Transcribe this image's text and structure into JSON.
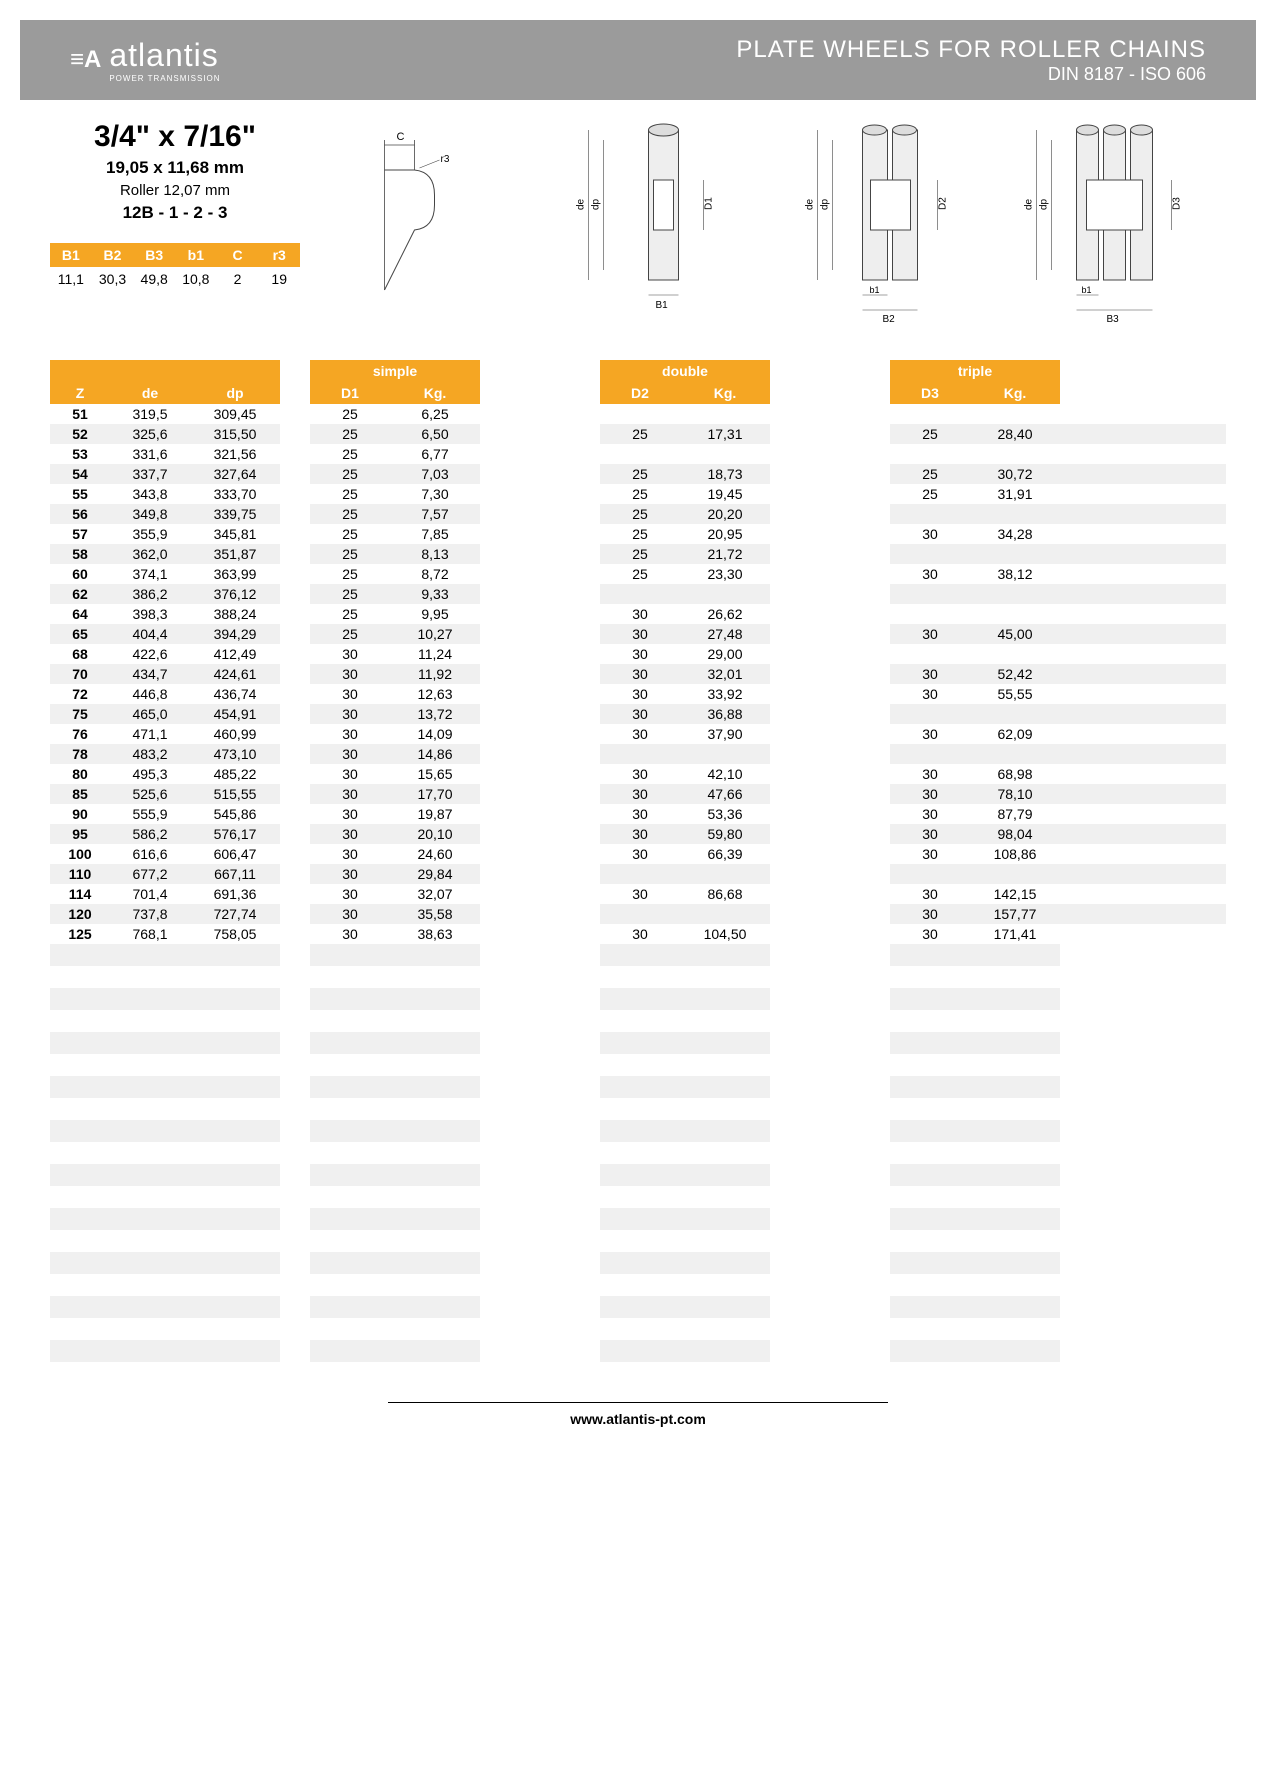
{
  "header": {
    "logo_text": "atlantis",
    "logo_sub": "POWER TRANSMISSION",
    "title1": "PLATE WHEELS FOR ROLLER CHAINS",
    "title2": "DIN 8187 - ISO 606"
  },
  "spec": {
    "main": "3/4\" x 7/16\"",
    "sub1": "19,05 x 11,68 mm",
    "sub2": "Roller 12,07 mm",
    "sub3": "12B - 1 - 2 - 3"
  },
  "small_table": {
    "headers": [
      "B1",
      "B2",
      "B3",
      "b1",
      "C",
      "r3"
    ],
    "values": [
      "11,1",
      "30,3",
      "49,8",
      "10,8",
      "2",
      "19"
    ]
  },
  "columns": {
    "z": "Z",
    "de": "de",
    "dp": "dp",
    "simple": "simple",
    "double": "double",
    "triple": "triple",
    "d1": "D1",
    "d2": "D2",
    "d3": "D3",
    "kg": "Kg."
  },
  "rows": [
    {
      "z": "51",
      "de": "319,5",
      "dp": "309,45",
      "d1": "25",
      "kg1": "6,25",
      "d2": "",
      "kg2": "",
      "d3": "",
      "kg3": ""
    },
    {
      "z": "52",
      "de": "325,6",
      "dp": "315,50",
      "d1": "25",
      "kg1": "6,50",
      "d2": "25",
      "kg2": "17,31",
      "d3": "25",
      "kg3": "28,40"
    },
    {
      "z": "53",
      "de": "331,6",
      "dp": "321,56",
      "d1": "25",
      "kg1": "6,77",
      "d2": "",
      "kg2": "",
      "d3": "",
      "kg3": ""
    },
    {
      "z": "54",
      "de": "337,7",
      "dp": "327,64",
      "d1": "25",
      "kg1": "7,03",
      "d2": "25",
      "kg2": "18,73",
      "d3": "25",
      "kg3": "30,72"
    },
    {
      "z": "55",
      "de": "343,8",
      "dp": "333,70",
      "d1": "25",
      "kg1": "7,30",
      "d2": "25",
      "kg2": "19,45",
      "d3": "25",
      "kg3": "31,91"
    },
    {
      "z": "56",
      "de": "349,8",
      "dp": "339,75",
      "d1": "25",
      "kg1": "7,57",
      "d2": "25",
      "kg2": "20,20",
      "d3": "",
      "kg3": ""
    },
    {
      "z": "57",
      "de": "355,9",
      "dp": "345,81",
      "d1": "25",
      "kg1": "7,85",
      "d2": "25",
      "kg2": "20,95",
      "d3": "30",
      "kg3": "34,28"
    },
    {
      "z": "58",
      "de": "362,0",
      "dp": "351,87",
      "d1": "25",
      "kg1": "8,13",
      "d2": "25",
      "kg2": "21,72",
      "d3": "",
      "kg3": ""
    },
    {
      "z": "60",
      "de": "374,1",
      "dp": "363,99",
      "d1": "25",
      "kg1": "8,72",
      "d2": "25",
      "kg2": "23,30",
      "d3": "30",
      "kg3": "38,12"
    },
    {
      "z": "62",
      "de": "386,2",
      "dp": "376,12",
      "d1": "25",
      "kg1": "9,33",
      "d2": "",
      "kg2": "",
      "d3": "",
      "kg3": ""
    },
    {
      "z": "64",
      "de": "398,3",
      "dp": "388,24",
      "d1": "25",
      "kg1": "9,95",
      "d2": "30",
      "kg2": "26,62",
      "d3": "",
      "kg3": ""
    },
    {
      "z": "65",
      "de": "404,4",
      "dp": "394,29",
      "d1": "25",
      "kg1": "10,27",
      "d2": "30",
      "kg2": "27,48",
      "d3": "30",
      "kg3": "45,00"
    },
    {
      "z": "68",
      "de": "422,6",
      "dp": "412,49",
      "d1": "30",
      "kg1": "11,24",
      "d2": "30",
      "kg2": "29,00",
      "d3": "",
      "kg3": ""
    },
    {
      "z": "70",
      "de": "434,7",
      "dp": "424,61",
      "d1": "30",
      "kg1": "11,92",
      "d2": "30",
      "kg2": "32,01",
      "d3": "30",
      "kg3": "52,42"
    },
    {
      "z": "72",
      "de": "446,8",
      "dp": "436,74",
      "d1": "30",
      "kg1": "12,63",
      "d2": "30",
      "kg2": "33,92",
      "d3": "30",
      "kg3": "55,55"
    },
    {
      "z": "75",
      "de": "465,0",
      "dp": "454,91",
      "d1": "30",
      "kg1": "13,72",
      "d2": "30",
      "kg2": "36,88",
      "d3": "",
      "kg3": ""
    },
    {
      "z": "76",
      "de": "471,1",
      "dp": "460,99",
      "d1": "30",
      "kg1": "14,09",
      "d2": "30",
      "kg2": "37,90",
      "d3": "30",
      "kg3": "62,09"
    },
    {
      "z": "78",
      "de": "483,2",
      "dp": "473,10",
      "d1": "30",
      "kg1": "14,86",
      "d2": "",
      "kg2": "",
      "d3": "",
      "kg3": ""
    },
    {
      "z": "80",
      "de": "495,3",
      "dp": "485,22",
      "d1": "30",
      "kg1": "15,65",
      "d2": "30",
      "kg2": "42,10",
      "d3": "30",
      "kg3": "68,98"
    },
    {
      "z": "85",
      "de": "525,6",
      "dp": "515,55",
      "d1": "30",
      "kg1": "17,70",
      "d2": "30",
      "kg2": "47,66",
      "d3": "30",
      "kg3": "78,10"
    },
    {
      "z": "90",
      "de": "555,9",
      "dp": "545,86",
      "d1": "30",
      "kg1": "19,87",
      "d2": "30",
      "kg2": "53,36",
      "d3": "30",
      "kg3": "87,79"
    },
    {
      "z": "95",
      "de": "586,2",
      "dp": "576,17",
      "d1": "30",
      "kg1": "20,10",
      "d2": "30",
      "kg2": "59,80",
      "d3": "30",
      "kg3": "98,04"
    },
    {
      "z": "100",
      "de": "616,6",
      "dp": "606,47",
      "d1": "30",
      "kg1": "24,60",
      "d2": "30",
      "kg2": "66,39",
      "d3": "30",
      "kg3": "108,86"
    },
    {
      "z": "110",
      "de": "677,2",
      "dp": "667,11",
      "d1": "30",
      "kg1": "29,84",
      "d2": "",
      "kg2": "",
      "d3": "",
      "kg3": ""
    },
    {
      "z": "114",
      "de": "701,4",
      "dp": "691,36",
      "d1": "30",
      "kg1": "32,07",
      "d2": "30",
      "kg2": "86,68",
      "d3": "30",
      "kg3": "142,15"
    },
    {
      "z": "120",
      "de": "737,8",
      "dp": "727,74",
      "d1": "30",
      "kg1": "35,58",
      "d2": "",
      "kg2": "",
      "d3": "30",
      "kg3": "157,77"
    },
    {
      "z": "125",
      "de": "768,1",
      "dp": "758,05",
      "d1": "30",
      "kg1": "38,63",
      "d2": "30",
      "kg2": "104,50",
      "d3": "30",
      "kg3": "171,41"
    }
  ],
  "empty_rows": 19,
  "footer": "www.atlantis-pt.com",
  "colors": {
    "header_bg": "#9b9b9b",
    "accent": "#f5a623",
    "row_alt": "#f0f0f0"
  }
}
